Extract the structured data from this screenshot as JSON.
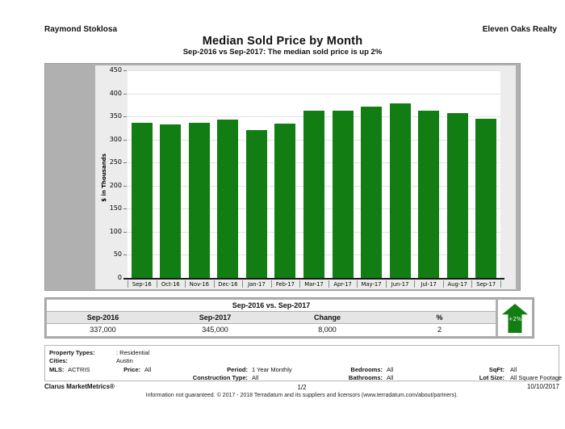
{
  "header": {
    "left": "Raymond Stoklosa",
    "right": "Eleven Oaks Realty",
    "title": "Median Sold Price by Month",
    "subtitle": "Sep-2016 vs Sep-2017: The median sold price is up 2%"
  },
  "chart_data": {
    "type": "bar",
    "title": "Median Sold Price by Month",
    "categories": [
      "Sep-16",
      "Oct-16",
      "Nov-16",
      "Dec-16",
      "Jan-17",
      "Feb-17",
      "Mar-17",
      "Apr-17",
      "May-17",
      "Jun-17",
      "Jul-17",
      "Aug-17",
      "Sep-17"
    ],
    "values": [
      337,
      332,
      336,
      344,
      321,
      334,
      363,
      362,
      371,
      378,
      363,
      358,
      345
    ],
    "xlabel": "",
    "ylabel": "$ in Thousands",
    "ylim": [
      0,
      450
    ],
    "ytick_step": 50,
    "grid": true,
    "legend": "none",
    "bar_color": "#127d12"
  },
  "comparison_table": {
    "title": "Sep-2016 vs. Sep-2017",
    "columns": [
      "Sep-2016",
      "Sep-2017",
      "Change",
      "%"
    ],
    "values": [
      "337,000",
      "345,000",
      "8,000",
      "2"
    ],
    "badge_label": "+2%",
    "badge_color": "#127d12"
  },
  "filters": {
    "property_types_label": "Property Types:",
    "property_types_value": ": Residential",
    "cities_label": "Cities:",
    "cities_value": "Austin",
    "mls_label": "MLS:",
    "mls_value": "ACTRIS",
    "price_label": "Price:",
    "price_value": "All",
    "period_label": "Period:",
    "period_value": "1 Year Monthly",
    "construction_label": "Construction Type:",
    "construction_value": "All",
    "bedrooms_label": "Bedrooms:",
    "bedrooms_value": "All",
    "bathrooms_label": "Bathrooms:",
    "bathrooms_value": "All",
    "sqft_label": "SqFt:",
    "sqft_value": "All",
    "lot_size_label": "Lot Size:",
    "lot_size_value": "All Square Footage"
  },
  "footer": {
    "brand": "Clarus MarketMetrics®",
    "page_number": "1/2",
    "date": "10/10/2017",
    "disclaimer": "Information not guaranteed. © 2017 - 2018 Terradatum and its suppliers and licensors (www.terradatum.com/about/partners)."
  }
}
